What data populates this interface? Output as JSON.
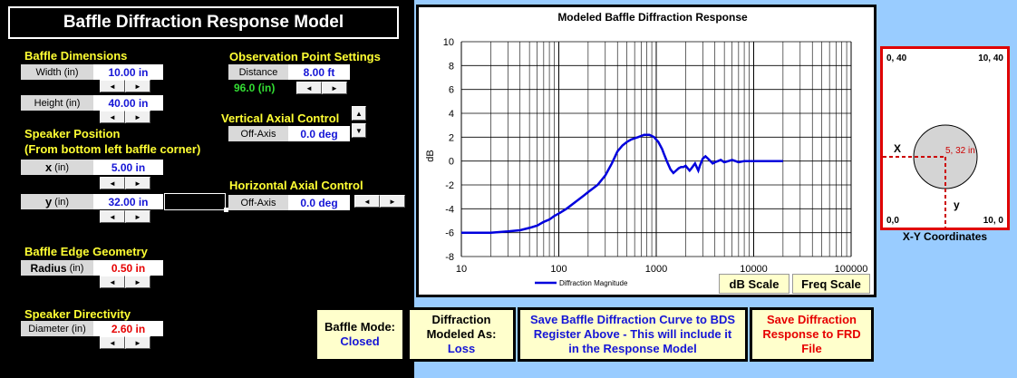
{
  "title": "Baffle Diffraction Response Model",
  "baffle_dimensions": {
    "heading": "Baffle Dimensions",
    "width_label": "Width (in)",
    "width_value": "10.00 in",
    "height_label": "Height (in)",
    "height_value": "40.00 in"
  },
  "speaker_position": {
    "heading": "Speaker Position",
    "subheading": "(From bottom left baffle corner)",
    "x_label": "x",
    "x_unit": "(in)",
    "x_value": "5.00 in",
    "y_label": "y",
    "y_unit": "(in)",
    "y_value": "32.00 in"
  },
  "edge_geometry": {
    "heading": "Baffle Edge Geometry",
    "radius_label": "Radius",
    "radius_unit": "(in)",
    "radius_value": "0.50 in"
  },
  "directivity": {
    "heading": "Speaker Directivity",
    "diameter_label": "Diameter (in)",
    "diameter_value": "2.60 in"
  },
  "observation": {
    "heading": "Observation Point Settings",
    "distance_label": "Distance",
    "distance_value": "8.00 ft",
    "distance_inches": "96.0 (in)"
  },
  "vertical_axial": {
    "heading": "Vertical Axial Control",
    "label": "Off-Axis",
    "value": "0.0 deg"
  },
  "horizontal_axial": {
    "heading": "Horizontal Axial Control",
    "label": "Off-Axis",
    "value": "0.0 deg"
  },
  "spinner": {
    "left": "◄",
    "right": "►",
    "up": "▲",
    "down": "▼"
  },
  "buttons": {
    "db_scale": "dB Scale",
    "freq_scale": "Freq Scale",
    "baffle_mode_label": "Baffle Mode:",
    "baffle_mode_value": "Closed",
    "diffraction_label_1": "Diffraction",
    "diffraction_label_2": "Modeled As:",
    "diffraction_value": "Loss",
    "save_bds_1": "Save Baffle Diffraction Curve to BDS",
    "save_bds_2": "Register Above - This will include it",
    "save_bds_3": "in the Response Model",
    "save_frd_1": "Save Diffraction",
    "save_frd_2": "Response to FRD",
    "save_frd_3": "File"
  },
  "xy": {
    "caption": "X-Y Coordinates",
    "top_left": "0, 40",
    "top_right": "10, 40",
    "bottom_left": "0,0",
    "bottom_right": "10, 0",
    "x_marker": "X",
    "y_marker": "y",
    "point_label": "5, 32 in",
    "circle_fill": "#d4d4d4",
    "marker_color": "#cc0000"
  },
  "chart_data": {
    "type": "line",
    "title": "Modeled Baffle Diffraction Response",
    "xlabel": "",
    "ylabel": "dB",
    "x_scale": "log",
    "xlim": [
      10,
      100000
    ],
    "ylim": [
      -8,
      10
    ],
    "x_ticks": [
      "10",
      "100",
      "1000",
      "10000",
      "100000"
    ],
    "y_ticks": [
      "10",
      "8",
      "6",
      "4",
      "2",
      "0",
      "-2",
      "-4",
      "-6",
      "-8"
    ],
    "grid": true,
    "legend_position": "bottom-left",
    "series": [
      {
        "name": "Diffraction Magnitude",
        "color": "#0000dd",
        "x": [
          10,
          20,
          30,
          40,
          50,
          60,
          70,
          80,
          90,
          100,
          120,
          150,
          180,
          200,
          250,
          300,
          350,
          400,
          450,
          500,
          550,
          600,
          650,
          700,
          750,
          800,
          850,
          900,
          950,
          1000,
          1050,
          1100,
          1150,
          1200,
          1300,
          1400,
          1500,
          1600,
          1700,
          1800,
          1900,
          2000,
          2100,
          2200,
          2300,
          2400,
          2500,
          2600,
          2700,
          2800,
          3000,
          3200,
          3400,
          3600,
          3800,
          4000,
          4300,
          4600,
          5000,
          5500,
          6000,
          6500,
          7000,
          8000,
          9000,
          10000,
          12000,
          15000,
          20000
        ],
        "values": [
          -6.0,
          -6.0,
          -5.9,
          -5.8,
          -5.6,
          -5.4,
          -5.1,
          -4.9,
          -4.6,
          -4.4,
          -4.0,
          -3.4,
          -2.9,
          -2.6,
          -2.0,
          -1.2,
          -0.2,
          0.8,
          1.3,
          1.6,
          1.8,
          1.9,
          2.0,
          2.1,
          2.2,
          2.2,
          2.2,
          2.1,
          2.0,
          1.8,
          1.6,
          1.3,
          1.0,
          0.6,
          -0.1,
          -0.7,
          -1.0,
          -0.8,
          -0.6,
          -0.5,
          -0.5,
          -0.4,
          -0.6,
          -0.8,
          -0.6,
          -0.4,
          -0.2,
          -0.5,
          -0.8,
          -0.4,
          0.2,
          0.4,
          0.2,
          0.0,
          -0.2,
          -0.1,
          0.0,
          0.1,
          -0.1,
          0.0,
          0.1,
          0.0,
          -0.1,
          0.0,
          0.0,
          0.0,
          0.0,
          0.0,
          0.0
        ]
      }
    ]
  }
}
